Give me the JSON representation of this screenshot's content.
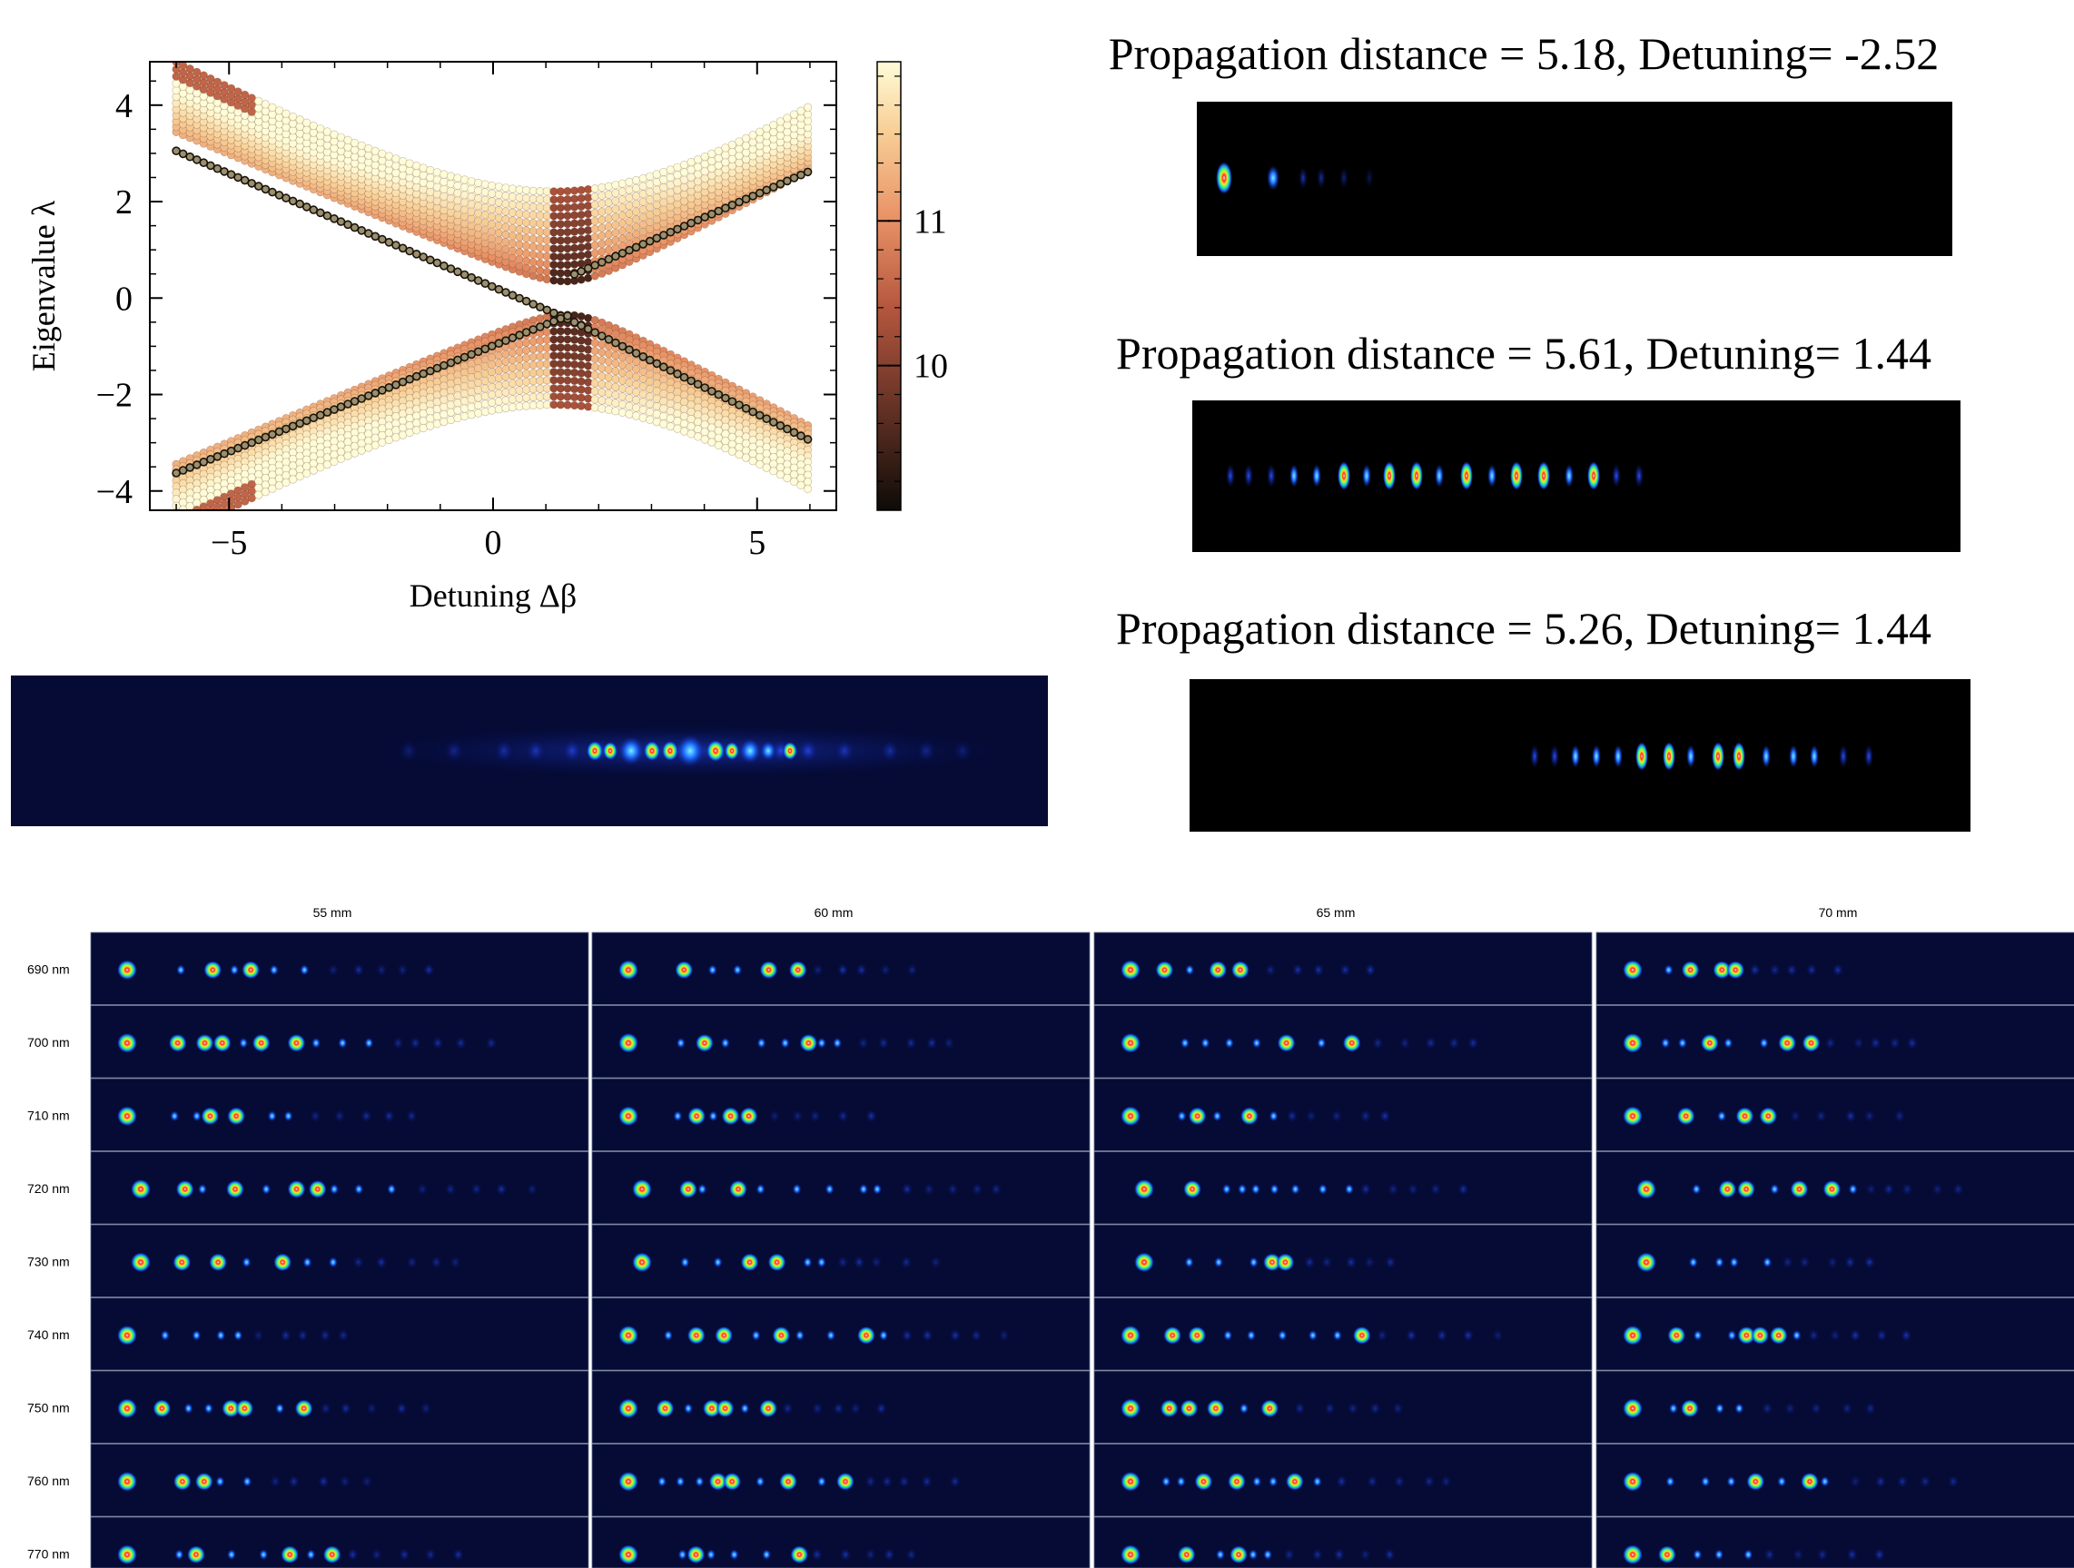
{
  "chart_data": {
    "type": "scatter",
    "xlabel": "Detuning Δβ",
    "ylabel": "Eigenvalue λ",
    "xlim": [
      -6.5,
      6.5
    ],
    "ylim": [
      -4.4,
      4.9
    ],
    "xticks": [
      -5,
      0,
      5
    ],
    "xtick_labels": [
      "−5",
      "0",
      "5"
    ],
    "yticks": [
      -4,
      -2,
      0,
      2,
      4
    ],
    "ytick_labels": [
      "−4",
      "−2",
      "0",
      "2",
      "4"
    ],
    "colorbar": {
      "ticks": [
        10,
        11
      ],
      "tick_labels": [
        "10",
        "11"
      ],
      "range": [
        9.0,
        12.1
      ],
      "colormap": "afmhot"
    },
    "grid": false,
    "highlighted_series": "black dots crossing the gap",
    "band_lines": 12,
    "x_range_points": [
      -6.0,
      6.0
    ]
  },
  "panels": [
    {
      "title": "Propagation distance = 5.18, Detuning= -2.52"
    },
    {
      "title": "Propagation distance = 5.61, Detuning= 1.44"
    },
    {
      "title": "Propagation distance = 5.26, Detuning= 1.44"
    }
  ],
  "grid": {
    "columns": [
      "55 mm",
      "60 mm",
      "65 mm",
      "70 mm"
    ],
    "rows": [
      "690 nm",
      "700 nm",
      "710 nm",
      "720 nm",
      "730 nm",
      "740 nm",
      "750 nm",
      "760 nm",
      "770 nm"
    ]
  },
  "colors": {
    "field_bg": "#050a33",
    "sim_bg": "#000000",
    "spot_core": "#ff2020",
    "spot_mid": "#30ff60",
    "spot_outer": "#1040ff"
  }
}
